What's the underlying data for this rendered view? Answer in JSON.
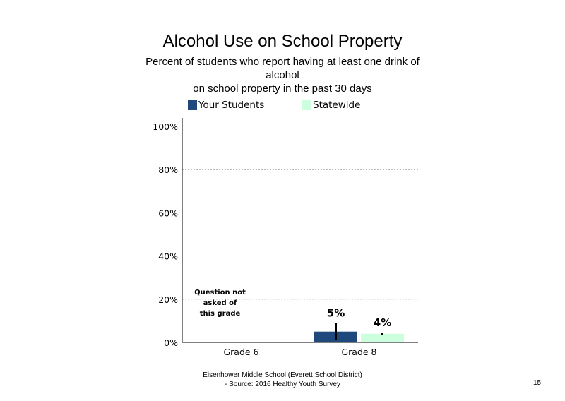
{
  "title": "Alcohol Use on School Property",
  "subtitle_lines": [
    "Percent of students  who report having at least one drink of",
    "alcohol",
    "on school property in the past 30 days"
  ],
  "footer_lines": [
    "Eisenhower Middle School (Everett School District)",
    "- Source: 2016 Healthy  Youth Survey"
  ],
  "page_number": "15",
  "colors": {
    "your_students": "#1f497d",
    "statewide": "#ccffdd",
    "gridline": "#a6a6a6",
    "error_bar": "#000000"
  },
  "chart_data": {
    "type": "bar",
    "categories": [
      "Grade 6",
      "Grade 8"
    ],
    "series": [
      {
        "name": "Your Students",
        "values": [
          null,
          5
        ],
        "labels": [
          "",
          "5%"
        ]
      },
      {
        "name": "Statewide",
        "values": [
          null,
          4
        ],
        "labels": [
          "",
          "4%"
        ]
      }
    ],
    "error_bars": {
      "Your Students": [
        null,
        [
          1,
          9
        ]
      ],
      "Statewide": [
        null,
        [
          3.5,
          4.5
        ]
      ]
    },
    "y_ticks": [
      "0%",
      "20%",
      "40%",
      "60%",
      "80%",
      "100%"
    ],
    "ylim": [
      0,
      100
    ],
    "gridlines": [
      20,
      80
    ],
    "legend_position": "top",
    "annotation": [
      "Question not",
      "asked of",
      "this grade"
    ]
  }
}
